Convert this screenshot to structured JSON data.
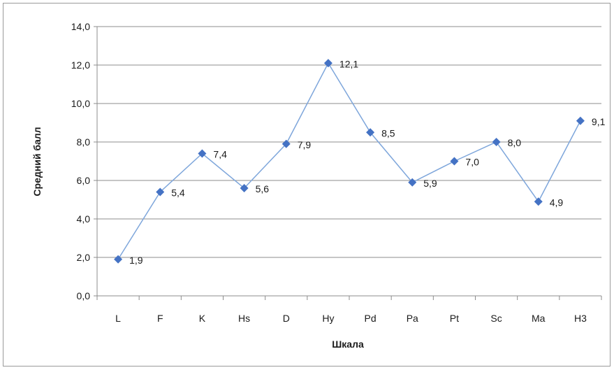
{
  "chart_data": {
    "type": "line",
    "categories": [
      "L",
      "F",
      "K",
      "Hs",
      "D",
      "Hy",
      "Pd",
      "Pa",
      "Pt",
      "Sc",
      "Ma",
      "H3"
    ],
    "values": [
      1.9,
      5.4,
      7.4,
      5.6,
      7.9,
      12.1,
      8.5,
      5.9,
      7.0,
      8.0,
      4.9,
      9.1
    ],
    "data_labels": [
      "1,9",
      "5,4",
      "7,4",
      "5,6",
      "7,9",
      "12,1",
      "8,5",
      "5,9",
      "7,0",
      "8,0",
      "4,9",
      "9,1"
    ],
    "xlabel": "Шкала",
    "ylabel": "Средний балл",
    "ylim": [
      0,
      14
    ],
    "yticks": [
      0,
      2,
      4,
      6,
      8,
      10,
      12,
      14
    ],
    "ytick_labels": [
      "0,0",
      "2,0",
      "4,0",
      "6,0",
      "8,0",
      "10,0",
      "12,0",
      "14,0"
    ],
    "grid": true,
    "legend": "none",
    "series_color": "#4472C4",
    "line_color": "#7EA6DB"
  }
}
